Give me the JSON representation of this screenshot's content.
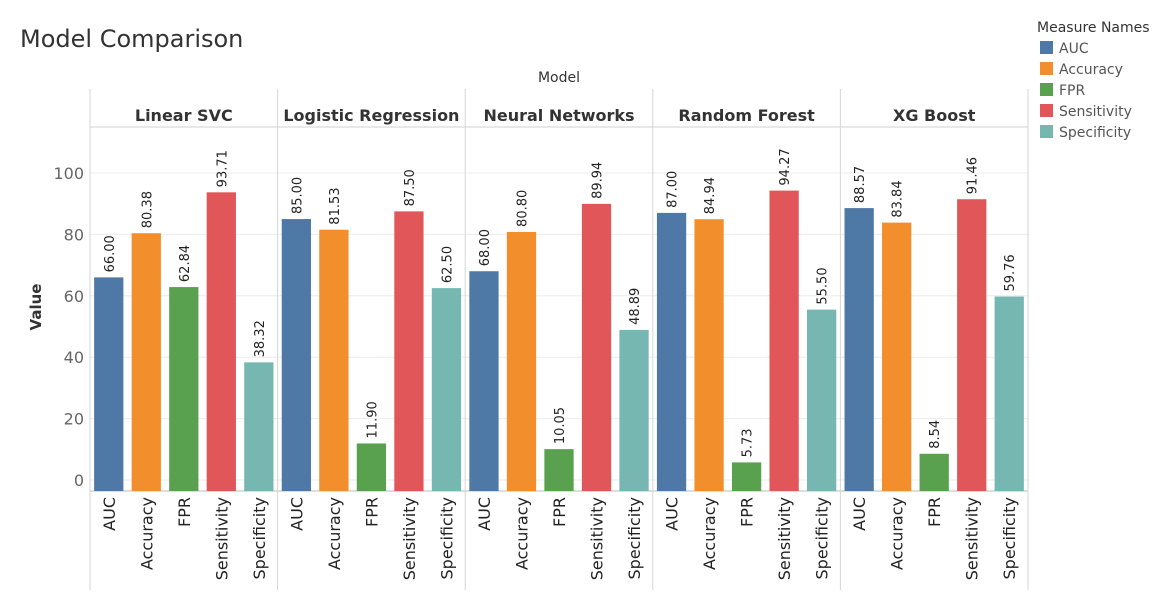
{
  "chart_data": {
    "type": "bar",
    "title": "Model Comparison",
    "column_header": "Model",
    "ylabel": "Value",
    "ylim": [
      0,
      115
    ],
    "yticks": [
      0,
      20,
      40,
      60,
      80,
      100
    ],
    "grid": true,
    "legend": {
      "title": "Measure Names",
      "placement": "top-right",
      "items": [
        {
          "name": "AUC",
          "color": "#4e79a7"
        },
        {
          "name": "Accuracy",
          "color": "#f28e2b"
        },
        {
          "name": "FPR",
          "color": "#59a14f"
        },
        {
          "name": "Sensitivity",
          "color": "#e15759"
        },
        {
          "name": "Specificity",
          "color": "#76b7b2"
        }
      ]
    },
    "categories": [
      "AUC",
      "Accuracy",
      "FPR",
      "Sensitivity",
      "Specificity"
    ],
    "groups": [
      {
        "name": "Linear SVC",
        "values": [
          66.0,
          80.38,
          62.84,
          93.71,
          38.32
        ],
        "labels": [
          "66.00",
          "80.38",
          "62.84",
          "93.71",
          "38.32"
        ]
      },
      {
        "name": "Logistic Regression",
        "values": [
          85.0,
          81.53,
          11.9,
          87.5,
          62.5
        ],
        "labels": [
          "85.00",
          "81.53",
          "11.90",
          "87.50",
          "62.50"
        ]
      },
      {
        "name": "Neural Networks",
        "values": [
          68.0,
          80.8,
          10.05,
          89.94,
          48.89
        ],
        "labels": [
          "68.00",
          "80.80",
          "10.05",
          "89.94",
          "48.89"
        ]
      },
      {
        "name": "Random Forest",
        "values": [
          87.0,
          84.94,
          5.73,
          94.27,
          55.5
        ],
        "labels": [
          "87.00",
          "84.94",
          "5.73",
          "94.27",
          "55.50"
        ]
      },
      {
        "name": "XG Boost",
        "values": [
          88.57,
          83.84,
          8.54,
          91.46,
          59.76
        ],
        "labels": [
          "88.57",
          "83.84",
          "8.54",
          "91.46",
          "59.76"
        ]
      }
    ]
  }
}
